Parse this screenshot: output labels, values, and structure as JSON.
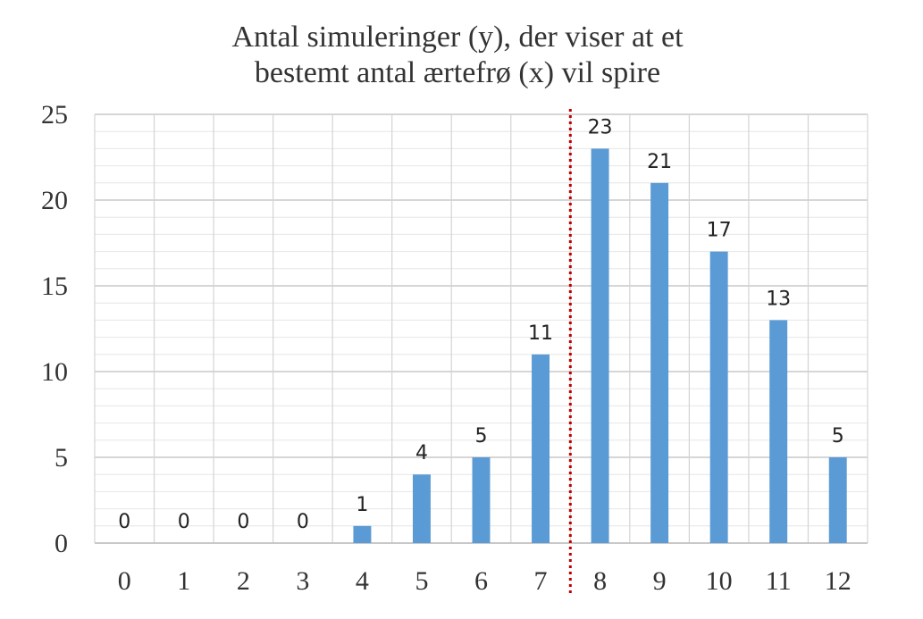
{
  "chart_data": {
    "type": "bar",
    "title": [
      "Antal simuleringer (y), der viser at et",
      "bestemt antal ærtefrø (x) vil spire"
    ],
    "categories": [
      "0",
      "1",
      "2",
      "3",
      "4",
      "5",
      "6",
      "7",
      "8",
      "9",
      "10",
      "11",
      "12"
    ],
    "values": [
      0,
      0,
      0,
      0,
      1,
      4,
      5,
      11,
      23,
      21,
      17,
      13,
      5
    ],
    "data_labels": [
      "0",
      "0",
      "0",
      "0",
      "1",
      "4",
      "5",
      "11",
      "23",
      "21",
      "17",
      "13",
      "5"
    ],
    "y_ticks": [
      "0",
      "5",
      "10",
      "15",
      "20",
      "25"
    ],
    "ylim": [
      0,
      25
    ],
    "xlabel": "",
    "ylabel": "",
    "grid": true,
    "legend": "none",
    "bar_color": "#5b9bd5",
    "reference_line": {
      "between": [
        "7",
        "8"
      ],
      "style": "dotted",
      "color": "#c00000"
    }
  }
}
